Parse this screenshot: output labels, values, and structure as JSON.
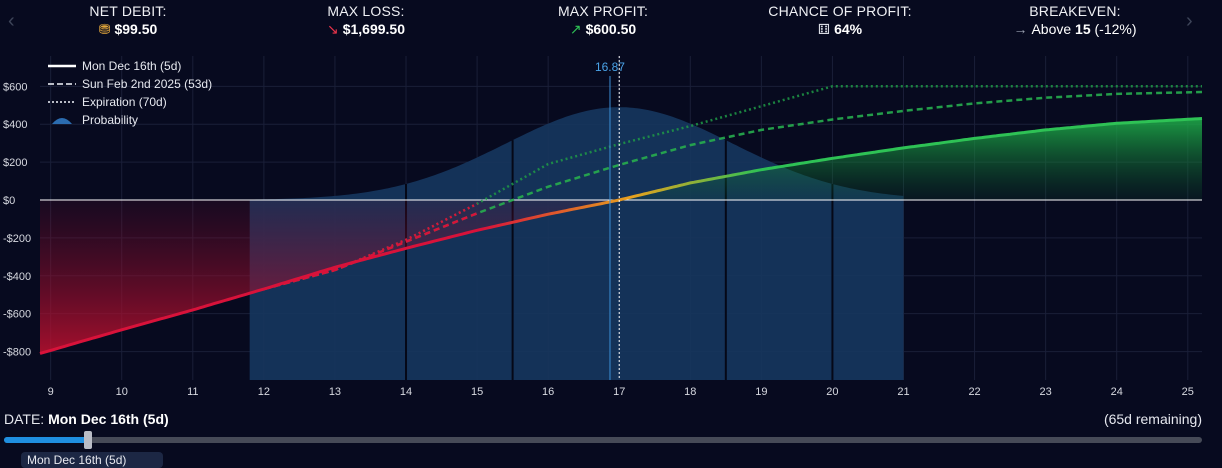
{
  "stats": [
    {
      "label": "NET DEBIT:",
      "icon": "coins-icon",
      "glyph": "⛃",
      "glyph_class": "ico-coin",
      "value": "$99.50"
    },
    {
      "label": "MAX LOSS:",
      "icon": "arrow-down-right-icon",
      "glyph": "↘",
      "glyph_class": "ico-red",
      "value": "$1,699.50"
    },
    {
      "label": "MAX PROFIT:",
      "icon": "arrow-up-right-icon",
      "glyph": "↗",
      "glyph_class": "ico-green",
      "value": "$600.50"
    },
    {
      "label": "CHANCE OF PROFIT:",
      "icon": "dice-icon",
      "glyph": "⚅",
      "glyph_class": "ico-dice",
      "value": "64%"
    }
  ],
  "breakeven": {
    "label": "BREAKEVEN:",
    "icon": "arrow-right-icon",
    "glyph": "→",
    "prefix": "Above",
    "number": "15",
    "suffix": "(-12%)"
  },
  "nav": {
    "prev": "‹",
    "next": "›"
  },
  "date": {
    "label": "DATE:",
    "value": "Mon Dec 16th (5d)",
    "remaining": "(65d remaining)"
  },
  "slider": {
    "fraction": 0.07
  },
  "tooltip": {
    "text": "Mon Dec 16th (5d)"
  },
  "colors": {
    "background": "#070a1f",
    "profit": "#2ec255",
    "loss": "#e8163b",
    "probability": "#16365e",
    "price_marker": "#3b8fd6",
    "zero_line": "#ffffff"
  },
  "chart_data": {
    "type": "line",
    "title": "",
    "xlabel": "",
    "ylabel": "",
    "xlim": [
      8.85,
      25.2
    ],
    "ylim": [
      -950,
      760
    ],
    "x_ticks": [
      9,
      10,
      11,
      12,
      13,
      14,
      15,
      16,
      17,
      18,
      19,
      20,
      21,
      22,
      23,
      24,
      25
    ],
    "y_ticks": [
      600,
      400,
      200,
      0,
      -200,
      -400,
      -600,
      -800
    ],
    "y_tick_labels": [
      "$600",
      "$400",
      "$200",
      "$0",
      "-$200",
      "-$400",
      "-$600",
      "-$800"
    ],
    "current_price": {
      "value": 16.87,
      "label": "16.87"
    },
    "expiration_price": 17.0,
    "grid": true,
    "legend_position": "top-left",
    "legend": [
      {
        "label": "Mon Dec 16th (5d)",
        "style": "solid"
      },
      {
        "label": "Sun Feb 2nd 2025 (53d)",
        "style": "dashed"
      },
      {
        "label": "Expiration (70d)",
        "style": "dotted"
      },
      {
        "label": "Probability",
        "style": "area"
      }
    ],
    "series": [
      {
        "name": "Mon Dec 16th (5d)",
        "style": "solid",
        "x": [
          8.85,
          10,
          11,
          12,
          13,
          14,
          15,
          16,
          17,
          18,
          19,
          20,
          21,
          22,
          23,
          24,
          25.2
        ],
        "y": [
          -810,
          -685,
          -580,
          -470,
          -355,
          -255,
          -160,
          -75,
          0,
          90,
          160,
          220,
          275,
          325,
          370,
          405,
          430
        ]
      },
      {
        "name": "Sun Feb 2nd 2025 (53d)",
        "style": "dashed",
        "x": [
          12,
          13,
          14,
          15,
          16,
          17,
          18,
          19,
          20,
          21,
          22,
          23,
          24,
          25.2
        ],
        "y": [
          -470,
          -370,
          -220,
          -70,
          70,
          185,
          290,
          370,
          425,
          470,
          510,
          540,
          560,
          570
        ]
      },
      {
        "name": "Expiration (70d)",
        "style": "dotted",
        "x": [
          12,
          13,
          14,
          15,
          16,
          17,
          18,
          19,
          20,
          21,
          22,
          23,
          24,
          25.2
        ],
        "y": [
          -470,
          -370,
          -210,
          -20,
          190,
          295,
          390,
          495,
          600,
          600,
          600,
          600,
          600,
          600
        ]
      }
    ],
    "probability": {
      "peak_y": 490,
      "mean": 17.0,
      "sigma": 1.6,
      "x_range": [
        11.8,
        21.0
      ],
      "sigma_markers": [
        15.5,
        18.5,
        14.0,
        20.0
      ]
    }
  }
}
